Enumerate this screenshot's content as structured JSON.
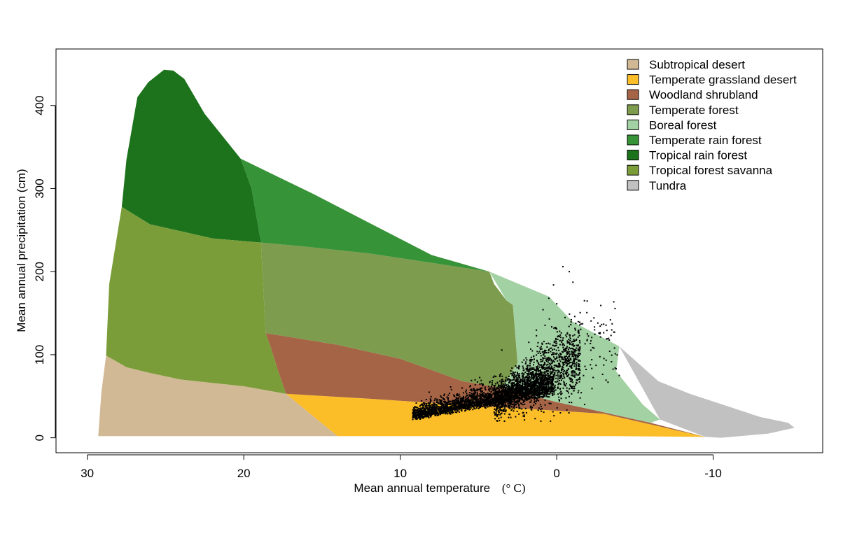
{
  "chart_data": {
    "type": "scatter",
    "title": "",
    "xlabel": "Mean annual temperature",
    "xlabel_unit": "(° C)",
    "ylabel": "Mean annual precipitation (cm)",
    "x_reversed": true,
    "xlim": [
      32,
      -17
    ],
    "ylim": [
      -18,
      468
    ],
    "x_ticks": [
      30,
      20,
      10,
      0,
      -10
    ],
    "x_tick_labels": [
      "30",
      "20",
      "10",
      "0",
      "-10"
    ],
    "y_ticks": [
      0,
      100,
      200,
      300,
      400
    ],
    "y_tick_labels": [
      "0",
      "100",
      "200",
      "300",
      "400"
    ],
    "grid": false,
    "legend_position": "top-right",
    "biomes": [
      {
        "name": "Subtropical desert",
        "color": "#D2B995",
        "polygon": [
          [
            29.3,
            2
          ],
          [
            29.1,
            55
          ],
          [
            28.8,
            99
          ],
          [
            27.5,
            85
          ],
          [
            26,
            78
          ],
          [
            24,
            70
          ],
          [
            20,
            62
          ],
          [
            17.3,
            53
          ],
          [
            15.5,
            25
          ],
          [
            14,
            2
          ]
        ]
      },
      {
        "name": "Temperate grassland desert",
        "color": "#FBBD28",
        "polygon": [
          [
            17.3,
            53
          ],
          [
            12,
            47
          ],
          [
            8,
            42
          ],
          [
            2,
            35
          ],
          [
            -3,
            29
          ],
          [
            -9.5,
            1
          ],
          [
            -4,
            2
          ],
          [
            2,
            2
          ],
          [
            8,
            2
          ],
          [
            14,
            2
          ],
          [
            15.5,
            25
          ]
        ]
      },
      {
        "name": "Woodland shrubland",
        "color": "#A66446",
        "polygon": [
          [
            18.6,
            126
          ],
          [
            18.3,
            110
          ],
          [
            17.8,
            80
          ],
          [
            17.3,
            53
          ],
          [
            12,
            47
          ],
          [
            8,
            42
          ],
          [
            2,
            35
          ],
          [
            -3,
            29
          ],
          [
            -9.5,
            1
          ],
          [
            -6,
            18
          ],
          [
            -2,
            35
          ],
          [
            0,
            43
          ],
          [
            3.5,
            60
          ],
          [
            6,
            68
          ],
          [
            10,
            95
          ],
          [
            14,
            112
          ]
        ]
      },
      {
        "name": "Temperate forest",
        "color": "#7D9C4D",
        "polygon": [
          [
            18.9,
            235
          ],
          [
            18.6,
            126
          ],
          [
            14,
            112
          ],
          [
            10,
            95
          ],
          [
            6,
            68
          ],
          [
            3.5,
            60
          ],
          [
            2.5,
            90
          ],
          [
            2.8,
            160
          ],
          [
            3.2,
            165
          ],
          [
            4,
            185
          ],
          [
            4.3,
            200
          ],
          [
            12,
            222
          ],
          [
            16,
            230
          ]
        ]
      },
      {
        "name": "Boreal forest",
        "color": "#A2D1A3",
        "polygon": [
          [
            4.3,
            200
          ],
          [
            3.2,
            165
          ],
          [
            2.8,
            160
          ],
          [
            2.5,
            90
          ],
          [
            3.5,
            60
          ],
          [
            0,
            43
          ],
          [
            -2,
            35
          ],
          [
            -6,
            18
          ],
          [
            -6.6,
            22
          ],
          [
            -5.5,
            40
          ],
          [
            -3.8,
            80
          ],
          [
            -4,
            110
          ],
          [
            -1,
            140
          ],
          [
            0.5,
            170
          ]
        ]
      },
      {
        "name": "Temperate rain forest",
        "color": "#379338",
        "polygon": [
          [
            20.2,
            336
          ],
          [
            19.5,
            300
          ],
          [
            18.9,
            235
          ],
          [
            16,
            230
          ],
          [
            12,
            222
          ],
          [
            4.3,
            200
          ],
          [
            8,
            220
          ],
          [
            15.5,
            293
          ],
          [
            19,
            325
          ]
        ]
      },
      {
        "name": "Tropical rain forest",
        "color": "#1C731C",
        "polygon": [
          [
            27.8,
            278
          ],
          [
            27.5,
            335
          ],
          [
            26.8,
            410
          ],
          [
            26.1,
            428
          ],
          [
            25.1,
            443
          ],
          [
            24.5,
            442
          ],
          [
            23.8,
            432
          ],
          [
            22.5,
            390
          ],
          [
            20.2,
            336
          ],
          [
            19.5,
            300
          ],
          [
            18.9,
            235
          ],
          [
            22,
            240
          ],
          [
            26,
            257
          ]
        ]
      },
      {
        "name": "Tropical forest savanna",
        "color": "#7A9D39",
        "polygon": [
          [
            28.8,
            99
          ],
          [
            28.6,
            185
          ],
          [
            27.8,
            278
          ],
          [
            26,
            257
          ],
          [
            22,
            240
          ],
          [
            18.9,
            235
          ],
          [
            18.6,
            126
          ],
          [
            18.3,
            110
          ],
          [
            17.8,
            80
          ],
          [
            17.3,
            53
          ],
          [
            20,
            62
          ],
          [
            24,
            70
          ],
          [
            26,
            78
          ],
          [
            27.5,
            85
          ]
        ]
      },
      {
        "name": "Tundra",
        "color": "#C1C1C1",
        "polygon": [
          [
            -4,
            110
          ],
          [
            -6.6,
            22
          ],
          [
            -9.5,
            1
          ],
          [
            -10.5,
            0
          ],
          [
            -13.5,
            5
          ],
          [
            -15.2,
            12
          ],
          [
            -14.8,
            18
          ],
          [
            -13,
            25
          ],
          [
            -8.5,
            53
          ],
          [
            -6.5,
            68
          ]
        ]
      }
    ],
    "points_note": ""
  }
}
